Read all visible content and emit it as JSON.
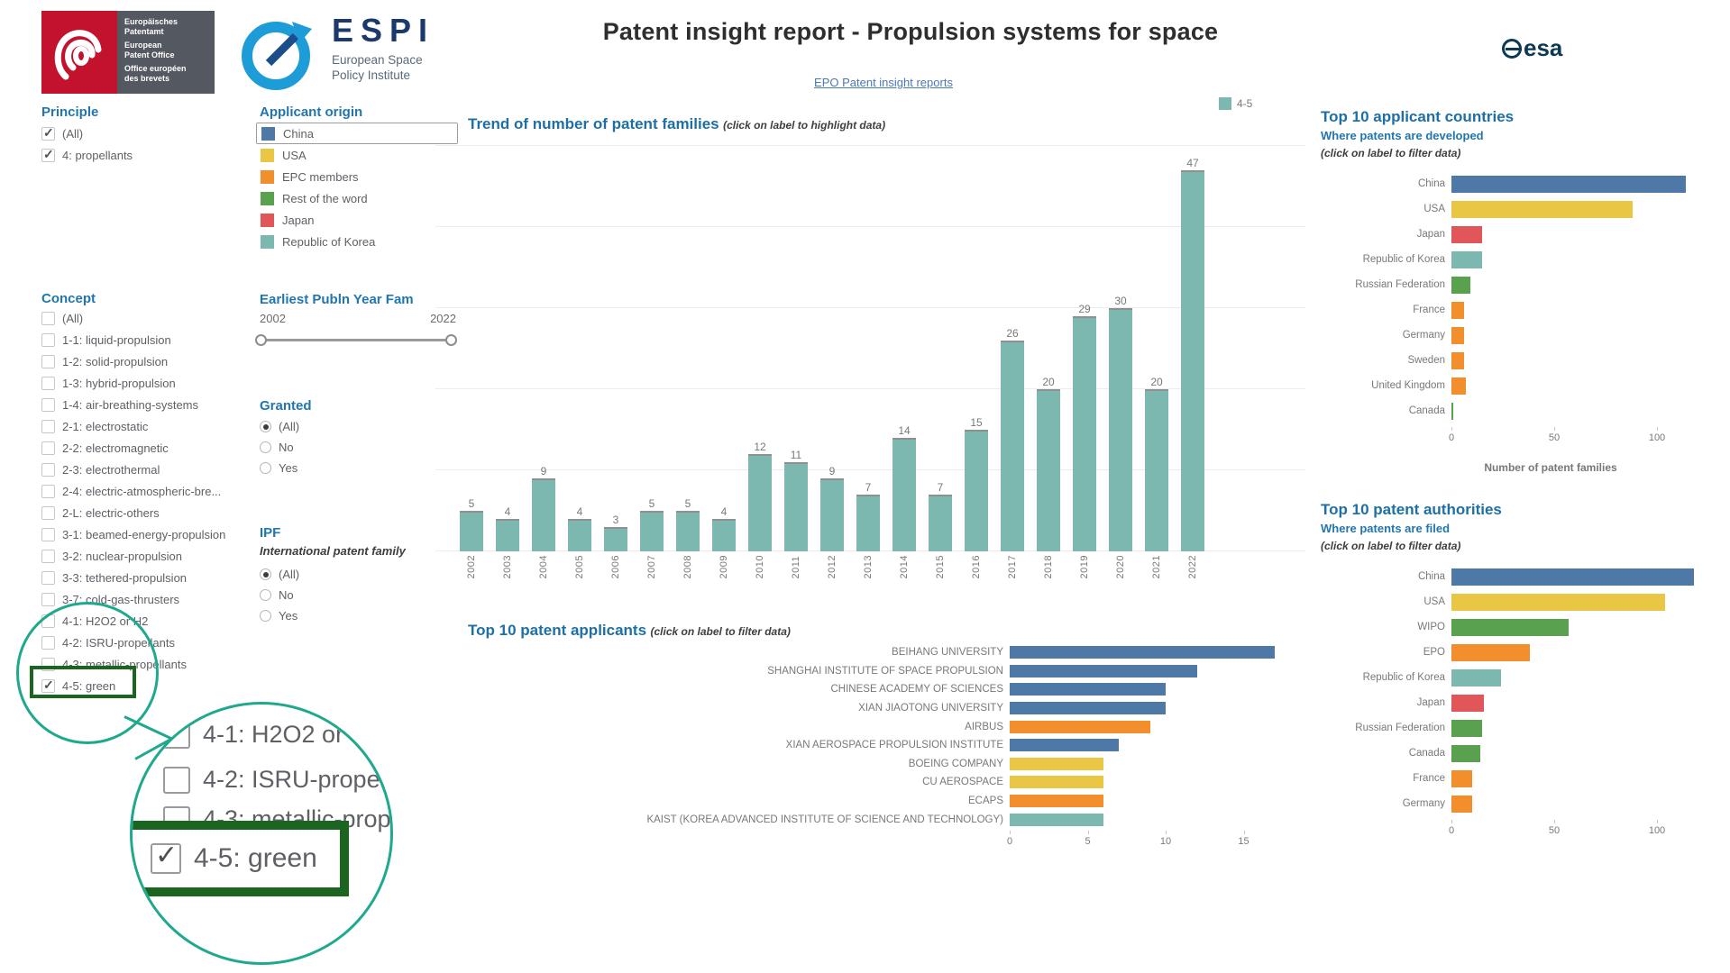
{
  "header": {
    "title": "Patent insight report - Propulsion systems for space",
    "link": "EPO Patent insight reports",
    "epo_logo_lines": [
      "Europäisches\nPatentamt",
      "European\nPatent Office",
      "Office européen\ndes brevets"
    ],
    "espi": {
      "word": "ESPI",
      "sub1": "European Space",
      "sub2": "Policy Institute"
    },
    "esa": "esa"
  },
  "filters": {
    "principle": {
      "title": "Principle",
      "items": [
        {
          "label": "(All)",
          "checked": true
        },
        {
          "label": "4: propellants",
          "checked": true
        }
      ]
    },
    "concept": {
      "title": "Concept",
      "items": [
        {
          "label": "(All)",
          "checked": false
        },
        {
          "label": "1-1: liquid-propulsion",
          "checked": false
        },
        {
          "label": "1-2: solid-propulsion",
          "checked": false
        },
        {
          "label": "1-3: hybrid-propulsion",
          "checked": false
        },
        {
          "label": "1-4: air-breathing-systems",
          "checked": false
        },
        {
          "label": "2-1: electrostatic",
          "checked": false
        },
        {
          "label": "2-2: electromagnetic",
          "checked": false
        },
        {
          "label": "2-3: electrothermal",
          "checked": false
        },
        {
          "label": "2-4: electric-atmospheric-bre...",
          "checked": false
        },
        {
          "label": "2-L: electric-others",
          "checked": false
        },
        {
          "label": "3-1: beamed-energy-propulsion",
          "checked": false
        },
        {
          "label": "3-2: nuclear-propulsion",
          "checked": false
        },
        {
          "label": "3-3: tethered-propulsion",
          "checked": false
        },
        {
          "label": "3-7: cold-gas-thrusters",
          "checked": false
        },
        {
          "label": "4-1: H2O2 or H2",
          "checked": false
        },
        {
          "label": "4-2: ISRU-propellants",
          "checked": false
        },
        {
          "label": "4-3: metallic-propellants",
          "checked": false
        },
        {
          "label": "4-5: green",
          "checked": true
        }
      ]
    },
    "applicant_origin": {
      "title": "Applicant origin",
      "items": [
        {
          "label": "China",
          "color": "#4e79a7",
          "selected": true
        },
        {
          "label": "USA",
          "color": "#eac645",
          "selected": false
        },
        {
          "label": "EPC members",
          "color": "#f28e2b",
          "selected": false
        },
        {
          "label": "Rest of the word",
          "color": "#59a14f",
          "selected": false
        },
        {
          "label": "Japan",
          "color": "#e15759",
          "selected": false
        },
        {
          "label": "Republic of Korea",
          "color": "#7db8b0",
          "selected": false
        }
      ]
    },
    "year_slider": {
      "title": "Earliest Publn Year Fam",
      "min": "2002",
      "max": "2022"
    },
    "granted": {
      "title": "Granted",
      "options": [
        "(All)",
        "No",
        "Yes"
      ],
      "selected": "(All)"
    },
    "ipf": {
      "title": "IPF",
      "subtitle": "International patent family",
      "options": [
        "(All)",
        "No",
        "Yes"
      ],
      "selected": "(All)"
    }
  },
  "magnifier": {
    "rows": [
      {
        "label": "4-1: H2O2 or H2",
        "checked": false
      },
      {
        "label": "4-2: ISRU-propellants",
        "checked": false
      },
      {
        "label": "4-3: metallic-propellants",
        "checked": false
      }
    ],
    "highlight": {
      "label": "4-5: green",
      "checked": true
    }
  },
  "chart_data": [
    {
      "type": "bar",
      "name": "trend",
      "title": "Trend of number of patent families",
      "note": "(click on label to highlight data)",
      "legend": {
        "label": "4-5",
        "color": "#7db8b0",
        "position": "top-right"
      },
      "categories": [
        "2002",
        "2003",
        "2004",
        "2005",
        "2006",
        "2007",
        "2008",
        "2009",
        "2010",
        "2011",
        "2012",
        "2013",
        "2014",
        "2015",
        "2016",
        "2017",
        "2018",
        "2019",
        "2020",
        "2021",
        "2022"
      ],
      "values": [
        5,
        4,
        9,
        4,
        3,
        5,
        5,
        4,
        12,
        11,
        9,
        7,
        14,
        7,
        15,
        26,
        20,
        29,
        30,
        20,
        47
      ],
      "bar_color": "#7db8b0",
      "ylim": [
        0,
        50
      ],
      "grid": "horizontal"
    },
    {
      "type": "bar",
      "name": "applicants",
      "orientation": "horizontal",
      "title": "Top 10 patent applicants",
      "note": "(click on label to filter data)",
      "categories": [
        "BEIHANG UNIVERSITY",
        "SHANGHAI INSTITUTE OF SPACE PROPULSION",
        "CHINESE ACADEMY OF SCIENCES",
        "XIAN JIAOTONG UNIVERSITY",
        "AIRBUS",
        "XIAN AEROSPACE PROPULSION INSTITUTE",
        "BOEING COMPANY",
        "CU AEROSPACE",
        "ECAPS",
        "KAIST (KOREA ADVANCED INSTITUTE OF SCIENCE AND TECHNOLOGY)"
      ],
      "values": [
        17,
        12,
        10,
        10,
        9,
        7,
        6,
        6,
        6,
        6
      ],
      "colors": [
        "#4e79a7",
        "#4e79a7",
        "#4e79a7",
        "#4e79a7",
        "#f28e2b",
        "#4e79a7",
        "#eac645",
        "#eac645",
        "#f28e2b",
        "#7db8b0"
      ],
      "xticks": [
        0,
        5,
        10,
        15
      ],
      "xlim": [
        0,
        18
      ]
    },
    {
      "type": "bar",
      "name": "applicant_countries",
      "orientation": "horizontal",
      "title": "Top 10 applicant countries",
      "subtitle": "Where patents are developed",
      "note": "(click on label to filter data)",
      "xlabel": "Number of patent families",
      "categories": [
        "China",
        "USA",
        "Japan",
        "Republic of Korea",
        "Russian Federation",
        "France",
        "Germany",
        "Sweden",
        "United Kingdom",
        "Canada"
      ],
      "values": [
        114,
        88,
        15,
        15,
        9,
        6,
        6,
        6,
        7,
        1
      ],
      "colors": [
        "#4e79a7",
        "#eac645",
        "#e15759",
        "#7db8b0",
        "#59a14f",
        "#f28e2b",
        "#f28e2b",
        "#f28e2b",
        "#f28e2b",
        "#59a14f"
      ],
      "xticks": [
        0,
        50,
        100
      ],
      "xlim": [
        0,
        130
      ]
    },
    {
      "type": "bar",
      "name": "patent_authorities",
      "orientation": "horizontal",
      "title": "Top 10 patent authorities",
      "subtitle": "Where patents are filed",
      "note": "(click on label to filter data)",
      "categories": [
        "China",
        "USA",
        "WIPO",
        "EPO",
        "Republic of Korea",
        "Japan",
        "Russian Federation",
        "Canada",
        "France",
        "Germany"
      ],
      "values": [
        118,
        104,
        57,
        38,
        24,
        16,
        15,
        14,
        10,
        10
      ],
      "colors": [
        "#4e79a7",
        "#eac645",
        "#59a14f",
        "#f28e2b",
        "#7db8b0",
        "#e15759",
        "#59a14f",
        "#59a14f",
        "#f28e2b",
        "#f28e2b"
      ],
      "xticks": [
        0,
        50,
        100
      ],
      "xlim": [
        0,
        130
      ]
    }
  ]
}
